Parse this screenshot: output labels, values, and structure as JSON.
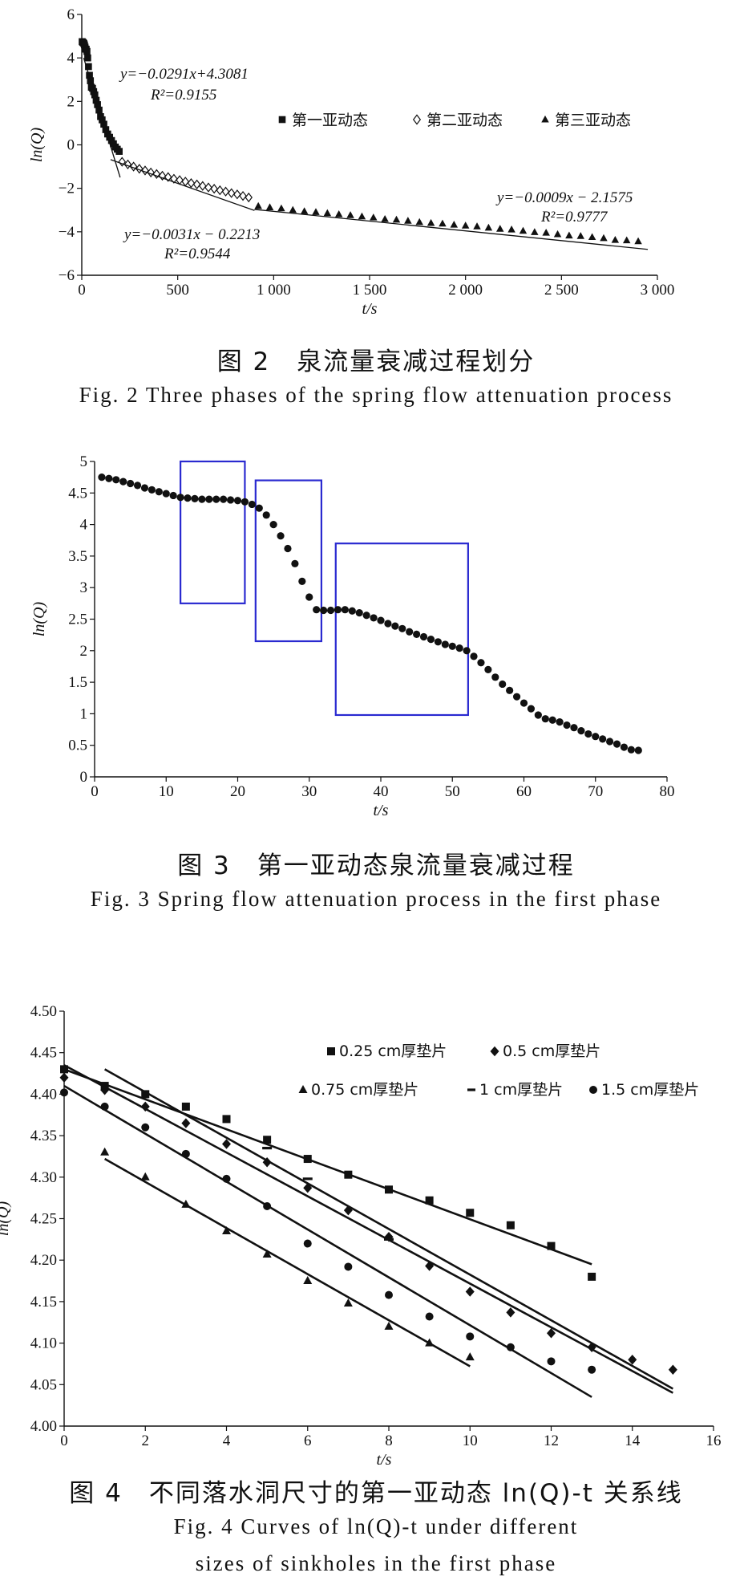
{
  "chart_data": [
    {
      "id": "fig2",
      "type": "scatter",
      "xlabel": "t/s",
      "ylabel": "ln(Q)",
      "xlim": [
        0,
        3000
      ],
      "ylim": [
        -6,
        6
      ],
      "xticks": [
        0,
        500,
        1000,
        1500,
        2000,
        2500,
        3000
      ],
      "xtick_labels": [
        "0",
        "500",
        "1 000",
        "1 500",
        "2 000",
        "2 500",
        "3 000"
      ],
      "yticks": [
        -6,
        -4,
        -2,
        0,
        2,
        4,
        6
      ],
      "ytick_labels": [
        "−6",
        "−4",
        "−2",
        "0",
        "2",
        "4",
        "6"
      ],
      "legend": [
        "第一亚动态",
        "第二亚动态",
        "第三亚动态"
      ],
      "legend_position": "top-right",
      "annotations": [
        {
          "eq": "y=−0.0291x+4.3081",
          "r2": "R²=0.9155"
        },
        {
          "eq": "y=−0.0031x − 0.2213",
          "r2": "R²=0.9544"
        },
        {
          "eq": "y=−0.0009x − 2.1575",
          "r2": "R²=0.9777"
        }
      ],
      "series": [
        {
          "name": "第一亚动态",
          "marker": "square",
          "x": [
            2,
            5,
            8,
            11,
            14,
            17,
            20,
            23,
            27,
            31,
            35,
            40,
            45,
            50,
            56,
            62,
            68,
            75,
            82,
            90,
            98,
            106,
            115,
            125,
            135,
            145,
            155,
            165,
            175,
            185,
            195
          ],
          "y": [
            4.75,
            4.72,
            4.7,
            4.66,
            4.6,
            4.5,
            4.41,
            4.4,
            4.3,
            4.0,
            3.6,
            3.2,
            2.95,
            2.65,
            2.6,
            2.45,
            2.3,
            2.05,
            1.85,
            1.6,
            1.3,
            1.15,
            0.95,
            0.7,
            0.5,
            0.35,
            0.2,
            0.05,
            -0.1,
            -0.2,
            -0.3
          ]
        },
        {
          "name": "第二亚动态",
          "marker": "diamond-open",
          "x": [
            210,
            240,
            270,
            300,
            330,
            360,
            390,
            420,
            450,
            480,
            510,
            540,
            570,
            600,
            630,
            660,
            690,
            720,
            750,
            780,
            810,
            840,
            870
          ],
          "y": [
            -0.78,
            -0.9,
            -1.0,
            -1.1,
            -1.18,
            -1.27,
            -1.34,
            -1.42,
            -1.48,
            -1.56,
            -1.62,
            -1.69,
            -1.76,
            -1.82,
            -1.89,
            -1.96,
            -2.02,
            -2.09,
            -2.15,
            -2.22,
            -2.28,
            -2.35,
            -2.42
          ]
        },
        {
          "name": "第三亚动态",
          "marker": "triangle",
          "x": [
            920,
            980,
            1040,
            1100,
            1160,
            1220,
            1280,
            1340,
            1400,
            1460,
            1520,
            1580,
            1640,
            1700,
            1760,
            1820,
            1880,
            1940,
            2000,
            2060,
            2120,
            2180,
            2240,
            2300,
            2360,
            2420,
            2480,
            2540,
            2600,
            2660,
            2720,
            2780,
            2840,
            2900
          ],
          "y": [
            -2.82,
            -2.88,
            -2.93,
            -3.0,
            -3.06,
            -3.1,
            -3.15,
            -3.2,
            -3.24,
            -3.3,
            -3.35,
            -3.42,
            -3.45,
            -3.5,
            -3.56,
            -3.6,
            -3.63,
            -3.68,
            -3.72,
            -3.76,
            -3.82,
            -3.87,
            -3.9,
            -3.96,
            -4.02,
            -4.05,
            -4.12,
            -4.18,
            -4.2,
            -4.25,
            -4.3,
            -4.38,
            -4.4,
            -4.44
          ]
        }
      ],
      "fit_lines": [
        {
          "x": [
            10,
            200
          ],
          "y": [
            4.0,
            -1.5
          ]
        },
        {
          "x": [
            150,
            900
          ],
          "y": [
            -0.68,
            -3.02
          ]
        },
        {
          "x": [
            900,
            2950
          ],
          "y": [
            -2.97,
            -4.81
          ]
        }
      ]
    },
    {
      "id": "fig3",
      "type": "scatter",
      "xlabel": "t/s",
      "ylabel": "ln(Q)",
      "xlim": [
        0,
        80
      ],
      "ylim": [
        0,
        5
      ],
      "xticks": [
        0,
        10,
        20,
        30,
        40,
        50,
        60,
        70,
        80
      ],
      "xtick_labels": [
        "0",
        "10",
        "20",
        "30",
        "40",
        "50",
        "60",
        "70",
        "80"
      ],
      "yticks": [
        0,
        0.5,
        1,
        1.5,
        2,
        2.5,
        3,
        3.5,
        4,
        4.5,
        5
      ],
      "ytick_labels": [
        "0",
        "0.5",
        "1",
        "1.5",
        "2",
        "2.5",
        "3",
        "3.5",
        "4",
        "4.5",
        "5"
      ],
      "series": [
        {
          "marker": "circle",
          "x": [
            1,
            2,
            3,
            4,
            5,
            6,
            7,
            8,
            9,
            10,
            11,
            12,
            13,
            14,
            15,
            16,
            17,
            18,
            19,
            20,
            21,
            22,
            23,
            24,
            25,
            26,
            27,
            28,
            29,
            30,
            31,
            32,
            33,
            34,
            35,
            36,
            37,
            38,
            39,
            40,
            41,
            42,
            43,
            44,
            45,
            46,
            47,
            48,
            49,
            50,
            51,
            52,
            53,
            54,
            55,
            56,
            57,
            58,
            59,
            60,
            61,
            62,
            63,
            64,
            65,
            66,
            67,
            68,
            69,
            70,
            71,
            72,
            73,
            74,
            75,
            76
          ],
          "y": [
            4.75,
            4.73,
            4.71,
            4.68,
            4.65,
            4.62,
            4.58,
            4.55,
            4.52,
            4.49,
            4.46,
            4.43,
            4.42,
            4.41,
            4.4,
            4.4,
            4.4,
            4.4,
            4.39,
            4.38,
            4.36,
            4.32,
            4.26,
            4.15,
            4.0,
            3.82,
            3.62,
            3.38,
            3.1,
            2.85,
            2.65,
            2.64,
            2.64,
            2.65,
            2.65,
            2.63,
            2.6,
            2.56,
            2.52,
            2.48,
            2.43,
            2.39,
            2.35,
            2.3,
            2.26,
            2.22,
            2.18,
            2.14,
            2.1,
            2.07,
            2.04,
            2.0,
            1.91,
            1.81,
            1.7,
            1.58,
            1.47,
            1.37,
            1.27,
            1.17,
            1.08,
            0.98,
            0.92,
            0.9,
            0.87,
            0.82,
            0.78,
            0.73,
            0.68,
            0.64,
            0.6,
            0.56,
            0.52,
            0.47,
            0.43,
            0.42
          ]
        }
      ],
      "boxes": [
        {
          "x": [
            12,
            21
          ],
          "y": [
            2.75,
            5.0
          ]
        },
        {
          "x": [
            22.5,
            31.7
          ],
          "y": [
            2.15,
            4.7
          ]
        },
        {
          "x": [
            33.7,
            52.2
          ],
          "y": [
            0.98,
            3.7
          ]
        }
      ],
      "box_color": "#2a2ad0"
    },
    {
      "id": "fig4",
      "type": "scatter",
      "xlabel": "t/s",
      "ylabel": "ln(Q)",
      "xlim": [
        0,
        16
      ],
      "ylim": [
        4.0,
        4.5
      ],
      "xticks": [
        0,
        2,
        4,
        6,
        8,
        10,
        12,
        14,
        16
      ],
      "xtick_labels": [
        "0",
        "2",
        "4",
        "6",
        "8",
        "10",
        "12",
        "14",
        "16"
      ],
      "yticks": [
        4.0,
        4.05,
        4.1,
        4.15,
        4.2,
        4.25,
        4.3,
        4.35,
        4.4,
        4.45,
        4.5
      ],
      "ytick_labels": [
        "4.00",
        "4.05",
        "4.10",
        "4.15",
        "4.20",
        "4.25",
        "4.30",
        "4.35",
        "4.40",
        "4.45",
        "4.50"
      ],
      "legend": [
        "0.25 cm厚垫片",
        "0.5 cm厚垫片",
        "0.75 cm厚垫片",
        "1 cm厚垫片",
        "1.5 cm厚垫片"
      ],
      "legend_position": "top-right",
      "series": [
        {
          "name": "0.25 cm厚垫片",
          "marker": "square",
          "x": [
            0,
            1,
            2,
            3,
            4,
            5,
            6,
            7,
            8,
            9,
            10,
            11,
            12,
            13
          ],
          "y": [
            4.43,
            4.41,
            4.4,
            4.385,
            4.37,
            4.345,
            4.322,
            4.303,
            4.285,
            4.272,
            4.257,
            4.242,
            4.217,
            4.18
          ],
          "fit": [
            [
              0,
              4.43
            ],
            [
              13,
              4.195
            ]
          ]
        },
        {
          "name": "0.5 cm厚垫片",
          "marker": "diamond",
          "x": [
            0,
            1,
            2,
            3,
            4,
            5,
            6,
            7,
            8,
            9,
            10,
            11,
            12,
            13,
            14,
            15
          ],
          "y": [
            4.42,
            4.405,
            4.385,
            4.365,
            4.34,
            4.318,
            4.287,
            4.26,
            4.228,
            4.193,
            4.162,
            4.137,
            4.112,
            4.095,
            4.08,
            4.068
          ],
          "fit": [
            [
              0,
              4.435
            ],
            [
              15,
              4.04
            ]
          ]
        },
        {
          "name": "0.75 cm厚垫片",
          "marker": "triangle",
          "x": [
            1,
            2,
            3,
            4,
            5,
            6,
            7,
            8,
            9,
            10
          ],
          "y": [
            4.33,
            4.3,
            4.267,
            4.235,
            4.207,
            4.175,
            4.148,
            4.12,
            4.1,
            4.083
          ],
          "fit": [
            [
              1,
              4.322
            ],
            [
              10,
              4.072
            ]
          ]
        },
        {
          "name": "1 cm厚垫片",
          "marker": "dash",
          "x": [
            5,
            6,
            8
          ],
          "y": [
            4.335,
            4.298,
            4.225
          ],
          "fit": [
            [
              1,
              4.43
            ],
            [
              15,
              4.045
            ]
          ]
        },
        {
          "name": "1.5 cm厚垫片",
          "marker": "circle",
          "x": [
            0,
            1,
            2,
            3,
            4,
            5,
            6,
            7,
            8,
            9,
            10,
            11,
            12,
            13
          ],
          "y": [
            4.402,
            4.385,
            4.36,
            4.328,
            4.298,
            4.265,
            4.22,
            4.192,
            4.158,
            4.132,
            4.108,
            4.095,
            4.078,
            4.068
          ],
          "fit": [
            [
              0,
              4.41
            ],
            [
              13,
              4.035
            ]
          ]
        }
      ]
    }
  ],
  "captions": {
    "fig2_cn": "图 2　泉流量衰减过程划分",
    "fig2_en": "Fig. 2   Three phases of the spring flow attenuation process",
    "fig3_cn": "图 3　第一亚动态泉流量衰减过程",
    "fig3_en": "Fig. 3   Spring flow attenuation process in the first phase",
    "fig4_cn": "图 4　不同落水洞尺寸的第一亚动态 ln(Q)-t 关系线",
    "fig4_en1": "Fig. 4   Curves of ln(Q)-t under different",
    "fig4_en2": "sizes of sinkholes in the first phase"
  }
}
